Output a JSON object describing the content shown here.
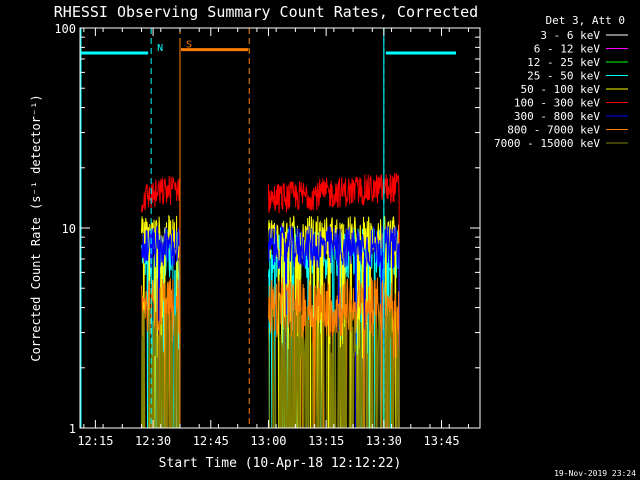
{
  "chart_data": {
    "type": "line",
    "title": "RHESSI Observing Summary Count Rates, Corrected",
    "xlabel": "Start Time (10-Apr-18 12:12:22)",
    "ylabel": "Corrected Count Rate (s⁻¹ detector⁻¹)",
    "y_scale": "log",
    "ylim": [
      1,
      100
    ],
    "xlim_minutes": [
      -1,
      103
    ],
    "x_tick_labels": [
      "12:15",
      "12:30",
      "12:45",
      "13:00",
      "13:15",
      "13:30",
      "13:45"
    ],
    "x_tick_minutes": [
      3,
      18,
      33,
      48,
      63,
      78,
      93
    ],
    "y_tick_labels": [
      "1",
      "10",
      "100"
    ],
    "y_tick_values": [
      1,
      10,
      100
    ],
    "legend_header": "Det 3, Att 0",
    "legend_position": "top-right",
    "grid": false,
    "data_segments_minutes": [
      [
        15,
        25
      ],
      [
        48,
        82
      ]
    ],
    "series": [
      {
        "name": "3 - 6 keV",
        "color": "#ffffff",
        "level_start": 2.4,
        "level_end": 2.4,
        "noise": 0.55,
        "drop": 1.0
      },
      {
        "name": "6 - 12 keV",
        "color": "#ff00ff",
        "level_start": 2.4,
        "level_end": 2.4,
        "noise": 0.55,
        "drop": 1.0
      },
      {
        "name": "12 - 25 keV",
        "color": "#00ff00",
        "level_start": 1.9,
        "level_end": 1.9,
        "noise": 0.6,
        "drop": 1.0
      },
      {
        "name": "25 - 50 keV",
        "color": "#00ffff",
        "level_start": 7.5,
        "level_end": 7.5,
        "noise": 0.3,
        "drop": 0.12
      },
      {
        "name": "50 - 100 keV",
        "color": "#ffff00",
        "level_start": 9.0,
        "level_end": 9.0,
        "noise": 0.25,
        "drop": 0.12
      },
      {
        "name": "100 - 300 keV",
        "color": "#ff0000",
        "level_start": 14,
        "level_end": 16,
        "noise": 0.18,
        "drop": 0.0
      },
      {
        "name": "300 - 800 keV",
        "color": "#0000ff",
        "level_start": 8.0,
        "level_end": 8.0,
        "noise": 0.25,
        "drop": 0.02
      },
      {
        "name": "800 - 7000 keV",
        "color": "#ff8000",
        "level_start": 4.0,
        "level_end": 4.0,
        "noise": 0.35,
        "drop": 0.05
      },
      {
        "name": "7000 - 15000 keV",
        "color": "#808000",
        "level_start": 3.0,
        "level_end": 3.0,
        "noise": 0.3,
        "drop": 0.6
      }
    ],
    "annotations": [
      {
        "text": "N",
        "color": "#00ffff",
        "start_minutes": 17.5,
        "end_minutes": 78,
        "level": 75
      },
      {
        "text": "S",
        "color": "#ff8000",
        "start_minutes": 25,
        "end_minutes": 43,
        "level": 78
      }
    ],
    "footer_date": "19-Nov-2019 23:24"
  }
}
